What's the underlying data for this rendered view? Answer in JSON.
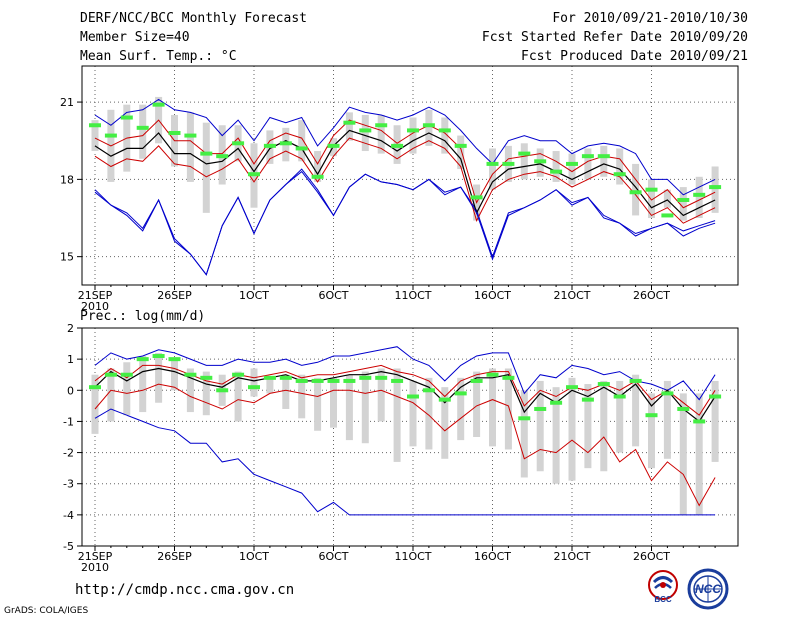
{
  "header": {
    "left": [
      "DERF/NCC/BCC Monthly Forecast",
      "Member Size=40",
      "Mean Surf. Temp.: °C"
    ],
    "right": [
      "For 2010/09/21-2010/10/30",
      "Fcst Started Refer Date 2010/09/20",
      "Fcst Produced Date 2010/09/21"
    ]
  },
  "footer": {
    "url": "http://cmdp.ncc.cma.gov.cn",
    "credit": "GrADS: COLA/IGES",
    "logo_bcc": "BCC",
    "logo_ncc": "NCC"
  },
  "colors": {
    "median": "#000000",
    "quartile": "#cc0000",
    "extreme": "#0000cc",
    "box": "#d3d3d3",
    "mean": "#44ee44"
  },
  "chart_data": [
    {
      "type": "line",
      "title": "Mean Surf. Temp.: °C",
      "x": [
        1,
        2,
        3,
        4,
        5,
        6,
        7,
        8,
        9,
        10,
        11,
        12,
        13,
        14,
        15,
        16,
        17,
        18,
        19,
        20,
        21,
        22,
        23,
        24,
        25,
        26,
        27,
        28,
        29,
        30,
        31,
        32,
        33,
        34,
        35,
        36,
        37,
        38,
        39,
        40
      ],
      "xticks": [
        {
          "day": 1,
          "label": "21SEP",
          "sub": "2010"
        },
        {
          "day": 6,
          "label": "26SEP"
        },
        {
          "day": 11,
          "label": "1OCT"
        },
        {
          "day": 16,
          "label": "6OCT"
        },
        {
          "day": 21,
          "label": "11OCT"
        },
        {
          "day": 26,
          "label": "16OCT"
        },
        {
          "day": 31,
          "label": "21OCT"
        },
        {
          "day": 36,
          "label": "26OCT"
        }
      ],
      "ylim": [
        13.9,
        22.4
      ],
      "yticks": [
        15,
        18,
        21
      ],
      "series": [
        {
          "name": "max",
          "values": [
            17.6,
            17.0,
            16.7,
            16.1,
            17.2,
            15.6,
            15.1,
            14.3,
            16.2,
            17.3,
            15.9,
            17.2,
            17.8,
            18.4,
            17.6,
            16.6,
            17.7,
            18.2,
            17.9,
            17.8,
            17.6,
            18.0,
            17.5,
            17.7,
            16.8,
            15.0,
            16.7,
            16.9,
            17.2,
            17.6,
            17.1,
            17.3,
            16.6,
            16.3,
            15.9,
            16.1,
            16.3,
            16.0,
            16.2,
            16.4
          ]
        },
        {
          "name": "upper",
          "values": [
            20.5,
            20.1,
            20.6,
            20.7,
            21.1,
            20.7,
            20.6,
            20.4,
            19.7,
            20.3,
            19.5,
            20.4,
            20.2,
            20.4,
            19.3,
            20.0,
            20.8,
            20.6,
            20.5,
            20.3,
            20.5,
            20.8,
            20.5,
            19.9,
            19.2,
            18.6,
            19.5,
            19.7,
            19.5,
            19.5,
            19.0,
            19.3,
            19.4,
            19.3,
            19.0,
            18.0,
            18.0,
            17.4,
            17.7,
            18.0
          ]
        },
        {
          "name": "q1",
          "values": [
            18.9,
            18.5,
            18.8,
            18.7,
            19.3,
            18.6,
            18.5,
            18.1,
            18.4,
            18.8,
            17.9,
            18.8,
            19.1,
            18.8,
            17.9,
            18.9,
            19.6,
            19.4,
            19.2,
            18.8,
            19.2,
            19.5,
            19.2,
            18.5,
            16.4,
            17.6,
            18.0,
            18.2,
            18.3,
            18.1,
            17.7,
            18.0,
            18.3,
            18.1,
            17.4,
            16.6,
            16.9,
            16.3,
            16.6,
            16.9
          ]
        },
        {
          "name": "median",
          "values": [
            19.3,
            18.9,
            19.2,
            19.2,
            19.8,
            19.0,
            19.0,
            18.6,
            18.7,
            19.2,
            18.3,
            19.2,
            19.5,
            19.2,
            18.2,
            19.3,
            19.9,
            19.7,
            19.5,
            19.1,
            19.5,
            19.8,
            19.5,
            18.8,
            16.7,
            17.9,
            18.4,
            18.5,
            18.6,
            18.3,
            18.0,
            18.3,
            18.6,
            18.4,
            17.7,
            16.9,
            17.2,
            16.6,
            16.9,
            17.2
          ]
        },
        {
          "name": "q3",
          "values": [
            19.6,
            19.3,
            19.6,
            19.7,
            20.3,
            19.5,
            19.5,
            19.0,
            19.0,
            19.6,
            18.6,
            19.5,
            19.8,
            19.6,
            18.6,
            19.7,
            20.3,
            20.1,
            19.9,
            19.4,
            19.8,
            20.1,
            19.8,
            19.2,
            17.1,
            18.2,
            18.8,
            18.9,
            19.0,
            18.7,
            18.3,
            18.7,
            18.9,
            18.8,
            18.0,
            17.2,
            17.6,
            16.9,
            17.2,
            17.5
          ]
        },
        {
          "name": "min",
          "values": [
            17.5,
            17.0,
            16.6,
            16.0,
            17.2,
            15.7,
            15.1,
            14.3,
            16.2,
            17.3,
            15.9,
            17.2,
            17.8,
            18.3,
            17.5,
            16.6,
            17.7,
            18.2,
            17.9,
            17.8,
            17.6,
            18.0,
            17.4,
            17.7,
            16.7,
            14.9,
            16.6,
            16.9,
            17.2,
            17.6,
            17.0,
            17.3,
            16.5,
            16.3,
            15.8,
            16.1,
            16.3,
            15.8,
            16.1,
            16.3
          ]
        },
        {
          "name": "mean",
          "values": [
            20.1,
            19.7,
            20.4,
            20.0,
            20.9,
            19.8,
            19.7,
            19.0,
            18.9,
            19.4,
            18.2,
            19.3,
            19.4,
            19.2,
            18.1,
            19.3,
            20.2,
            19.9,
            20.1,
            19.3,
            19.9,
            20.1,
            19.9,
            19.3,
            17.3,
            18.6,
            18.6,
            19.0,
            18.7,
            18.3,
            18.6,
            18.9,
            18.9,
            18.2,
            17.5,
            17.6,
            16.6,
            17.2,
            17.4,
            17.7
          ]
        },
        {
          "name": "box_top",
          "values": [
            20.3,
            20.7,
            20.9,
            20.9,
            21.2,
            20.5,
            20.6,
            20.2,
            20.1,
            20.1,
            19.4,
            19.9,
            20.0,
            20.3,
            19.1,
            19.6,
            20.6,
            20.5,
            20.5,
            20.1,
            20.4,
            20.7,
            20.4,
            19.7,
            17.8,
            19.2,
            19.3,
            19.4,
            19.2,
            19.1,
            19.0,
            19.2,
            19.3,
            19.2,
            18.6,
            18.0,
            17.6,
            17.7,
            18.1,
            18.5
          ]
        },
        {
          "name": "box_bottom",
          "values": [
            19.1,
            17.9,
            18.3,
            18.8,
            19.4,
            18.5,
            17.9,
            16.7,
            17.8,
            18.7,
            16.9,
            18.6,
            18.7,
            18.7,
            17.9,
            18.9,
            19.5,
            19.1,
            19.0,
            18.6,
            19.0,
            19.3,
            19.0,
            18.4,
            16.4,
            17.6,
            17.9,
            18.0,
            18.1,
            17.9,
            17.8,
            18.0,
            18.1,
            17.8,
            16.6,
            16.5,
            16.9,
            16.4,
            16.5,
            16.7
          ]
        }
      ]
    },
    {
      "type": "line",
      "title": "Prec.: log(mm/d)",
      "x": [
        1,
        2,
        3,
        4,
        5,
        6,
        7,
        8,
        9,
        10,
        11,
        12,
        13,
        14,
        15,
        16,
        17,
        18,
        19,
        20,
        21,
        22,
        23,
        24,
        25,
        26,
        27,
        28,
        29,
        30,
        31,
        32,
        33,
        34,
        35,
        36,
        37,
        38,
        39,
        40
      ],
      "xticks": [
        {
          "day": 1,
          "label": "21SEP",
          "sub": "2010"
        },
        {
          "day": 6,
          "label": "26SEP"
        },
        {
          "day": 11,
          "label": "1OCT"
        },
        {
          "day": 16,
          "label": "6OCT"
        },
        {
          "day": 21,
          "label": "11OCT"
        },
        {
          "day": 26,
          "label": "16OCT"
        },
        {
          "day": 31,
          "label": "21OCT"
        },
        {
          "day": 36,
          "label": "26OCT"
        }
      ],
      "ylim": [
        -5,
        2
      ],
      "yticks": [
        -5,
        -4,
        -3,
        -2,
        -1,
        0,
        1,
        2
      ],
      "series": [
        {
          "name": "max",
          "values": [
            0.8,
            1.2,
            1.0,
            1.1,
            1.3,
            1.2,
            1.0,
            0.8,
            0.8,
            1.0,
            0.9,
            0.9,
            1.0,
            0.8,
            0.9,
            1.1,
            1.1,
            1.2,
            1.3,
            1.4,
            1.0,
            0.8,
            0.3,
            0.8,
            1.1,
            1.2,
            1.2,
            -0.1,
            0.5,
            0.4,
            0.8,
            0.7,
            0.5,
            0.6,
            0.3,
            0.2,
            0.0,
            0.3,
            -0.3,
            0.5
          ]
        },
        {
          "name": "q3",
          "values": [
            0.3,
            0.7,
            0.4,
            0.8,
            0.8,
            0.7,
            0.5,
            0.3,
            0.2,
            0.5,
            0.4,
            0.5,
            0.6,
            0.4,
            0.5,
            0.5,
            0.6,
            0.7,
            0.8,
            0.6,
            0.5,
            0.3,
            -0.2,
            0.3,
            0.5,
            0.6,
            0.6,
            -0.5,
            0.0,
            -0.2,
            0.1,
            0.0,
            0.2,
            0.0,
            0.3,
            -0.3,
            0.0,
            -0.4,
            -0.8,
            0.0
          ]
        },
        {
          "name": "median",
          "values": [
            0.1,
            0.6,
            0.3,
            0.6,
            0.7,
            0.6,
            0.4,
            0.2,
            0.1,
            0.4,
            0.3,
            0.4,
            0.5,
            0.3,
            0.3,
            0.4,
            0.5,
            0.5,
            0.6,
            0.5,
            0.3,
            0.1,
            -0.4,
            0.1,
            0.4,
            0.4,
            0.5,
            -0.7,
            -0.1,
            -0.4,
            0.0,
            -0.2,
            0.1,
            -0.2,
            0.2,
            -0.5,
            0.0,
            -0.6,
            -1.0,
            -0.2
          ]
        },
        {
          "name": "q1",
          "values": [
            -0.6,
            0.0,
            -0.1,
            0.0,
            0.2,
            0.1,
            -0.2,
            -0.4,
            -0.6,
            -0.3,
            -0.4,
            -0.1,
            0.0,
            -0.1,
            -0.2,
            0.0,
            0.0,
            -0.1,
            0.0,
            -0.2,
            -0.4,
            -0.8,
            -1.3,
            -0.9,
            -0.5,
            -0.3,
            -0.5,
            -2.2,
            -1.9,
            -2.0,
            -1.6,
            -2.0,
            -1.5,
            -2.3,
            -1.9,
            -2.9,
            -2.3,
            -2.7,
            -3.7,
            -2.8
          ]
        },
        {
          "name": "min",
          "values": [
            -0.9,
            -0.6,
            -0.8,
            -1.0,
            -1.2,
            -1.3,
            -1.7,
            -1.7,
            -2.3,
            -2.2,
            -2.7,
            -2.9,
            -3.1,
            -3.3,
            -3.9,
            -3.6,
            -4.0,
            -4.0,
            -4.0,
            -4.0,
            -4.0,
            -4.0,
            -4.0,
            -4.0,
            -4.0,
            -4.0,
            -4.0,
            -4.0,
            -4.0,
            -4.0,
            -4.0,
            -4.0,
            -4.0,
            -4.0,
            -4.0,
            -4.0,
            -4.0,
            -4.0,
            -4.0,
            -4.0
          ]
        },
        {
          "name": "mean",
          "values": [
            0.1,
            0.5,
            0.5,
            1.0,
            1.1,
            1.0,
            0.5,
            0.4,
            0.0,
            0.5,
            0.1,
            0.4,
            0.4,
            0.3,
            0.3,
            0.3,
            0.3,
            0.4,
            0.4,
            0.3,
            -0.2,
            0.0,
            -0.3,
            -0.1,
            0.3,
            0.5,
            0.4,
            -0.9,
            -0.6,
            -0.4,
            0.1,
            -0.3,
            0.2,
            -0.2,
            0.3,
            -0.8,
            -0.1,
            -0.6,
            -1.0,
            -0.2
          ]
        },
        {
          "name": "box_top",
          "values": [
            0.5,
            0.7,
            0.9,
            1.1,
            1.2,
            1.0,
            0.7,
            0.6,
            0.5,
            0.6,
            0.7,
            0.4,
            0.5,
            0.5,
            0.4,
            0.4,
            0.5,
            0.6,
            0.7,
            0.7,
            0.3,
            0.4,
            0.1,
            0.4,
            0.6,
            0.7,
            0.7,
            0.0,
            0.3,
            0.1,
            0.4,
            0.2,
            0.3,
            0.3,
            0.5,
            -0.1,
            0.3,
            -0.1,
            -0.1,
            0.3
          ]
        },
        {
          "name": "box_bottom",
          "values": [
            -1.4,
            -1.0,
            -0.8,
            -0.7,
            -0.4,
            0.0,
            -0.7,
            -0.8,
            -0.5,
            -1.0,
            -0.2,
            -0.1,
            -0.6,
            -0.9,
            -1.3,
            -1.2,
            -1.6,
            -1.7,
            -1.0,
            -2.3,
            -1.8,
            -1.9,
            -2.2,
            -1.6,
            -1.5,
            -1.8,
            -1.9,
            -2.8,
            -2.6,
            -3.0,
            -2.9,
            -2.5,
            -2.6,
            -2.0,
            -1.8,
            -2.5,
            -2.2,
            -4.0,
            -4.0,
            -2.3
          ]
        }
      ]
    }
  ]
}
